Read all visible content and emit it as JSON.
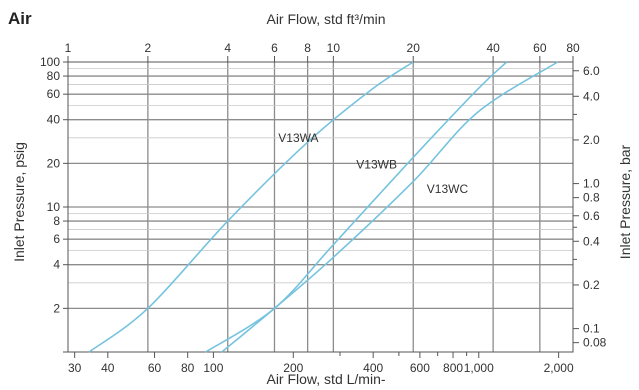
{
  "chart_data": {
    "type": "line",
    "title": "Air",
    "xlabel_top": "Air Flow, std ft³/min",
    "xlabel_bottom": "Air Flow, std L/min-",
    "ylabel_left": "Inlet Pressure, psig",
    "ylabel_right": "Inlet Pressure, bar",
    "x_scale": "log",
    "y_scale": "log",
    "x_range_ft3min": [
      1,
      80
    ],
    "y_range_psig": [
      1,
      100
    ],
    "grid": true,
    "x_ticks_top": [
      "1",
      "2",
      "4",
      "6",
      "8",
      "10",
      "20",
      "40",
      "60",
      "80"
    ],
    "x_ticks_bottom": [
      "30",
      "40",
      "60",
      "80",
      "100",
      "200",
      "400",
      "600",
      "800",
      "1,000",
      "2,000"
    ],
    "y_ticks_left": [
      "100",
      "80",
      "60",
      "40",
      "20",
      "10",
      "8",
      "6",
      "4",
      "2"
    ],
    "y_ticks_right": [
      "6.0",
      "4.0",
      "2.0",
      "1.0",
      "0.8",
      "0.6",
      "0.4",
      "0.2",
      "0.1",
      "0.08"
    ],
    "series": [
      {
        "name": "V13WA",
        "x": [
          1.2,
          2,
          4,
          8,
          14,
          20
        ],
        "y": [
          1,
          2,
          8,
          28,
          65,
          100
        ]
      },
      {
        "name": "V13WB",
        "x": [
          3.3,
          6,
          10,
          20,
          35,
          45
        ],
        "y": [
          1,
          2,
          5.5,
          22,
          65,
          100
        ]
      },
      {
        "name": "V13WC",
        "x": [
          3.8,
          6,
          10,
          20,
          35,
          70
        ],
        "y": [
          1,
          2,
          4.5,
          15,
          45,
          100
        ]
      }
    ]
  }
}
